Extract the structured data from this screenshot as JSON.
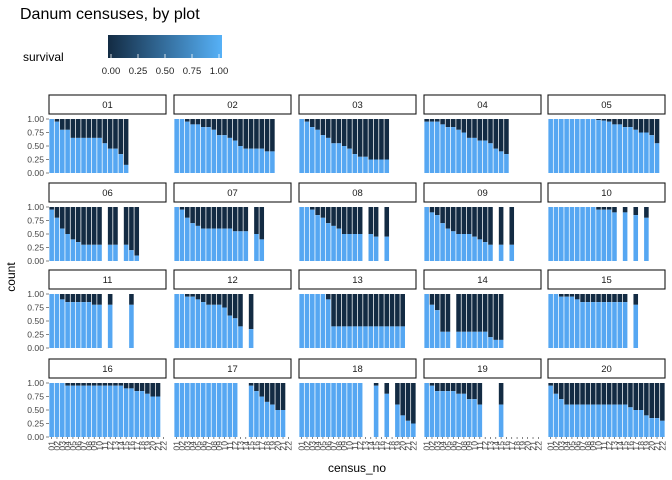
{
  "chart_data": {
    "type": "stacked-bar-facets",
    "title": "Danum censuses, by plot",
    "xlabel": "census_no",
    "ylabel": "count",
    "ylim": [
      0,
      1
    ],
    "yticks": [
      "0.00",
      "0.25",
      "0.50",
      "0.75",
      "1.00"
    ],
    "x_tick_labels": [
      "01",
      "02",
      "03",
      "04",
      "05",
      "06",
      "07",
      "08",
      "09",
      "10",
      "11",
      "12",
      "13",
      "14",
      "15",
      "16",
      "17",
      "18",
      "19",
      "20",
      "21",
      "22"
    ],
    "legend": {
      "title": "survival",
      "ticks": [
        "0.00",
        "0.25",
        "0.50",
        "0.75",
        "1.00"
      ],
      "color_low": "#132B43",
      "color_high": "#56B1F7",
      "placement": "top"
    },
    "colors": {
      "survived": "#56A7F2",
      "died": "#132B43"
    },
    "facets": [
      {
        "label": "01",
        "survival": [
          1,
          0.95,
          0.8,
          0.8,
          0.65,
          0.65,
          0.65,
          0.65,
          0.65,
          0.65,
          0.55,
          0.45,
          0.45,
          0.35,
          0.15,
          null,
          null,
          null,
          null,
          null,
          null,
          null
        ]
      },
      {
        "label": "02",
        "survival": [
          1,
          1,
          0.95,
          0.9,
          0.9,
          0.85,
          0.85,
          0.8,
          0.7,
          0.7,
          0.65,
          0.6,
          0.5,
          0.45,
          0.45,
          0.45,
          0.45,
          0.4,
          0.4,
          null,
          null,
          null
        ]
      },
      {
        "label": "03",
        "survival": [
          1,
          0.95,
          0.85,
          0.8,
          0.7,
          0.65,
          0.55,
          0.55,
          0.5,
          0.45,
          0.35,
          0.3,
          0.3,
          0.25,
          0.25,
          0.25,
          0.25,
          null,
          null,
          null,
          null,
          null
        ]
      },
      {
        "label": "04",
        "survival": [
          0.95,
          0.95,
          0.95,
          0.9,
          0.85,
          0.85,
          0.8,
          0.75,
          0.65,
          0.65,
          0.6,
          0.6,
          0.55,
          0.45,
          0.4,
          0.35,
          null,
          null,
          null,
          null,
          null,
          null
        ]
      },
      {
        "label": "05",
        "survival": [
          1,
          1,
          1,
          1,
          1,
          1,
          1,
          1,
          1,
          0.98,
          0.97,
          0.95,
          0.9,
          0.9,
          0.85,
          0.85,
          0.8,
          0.75,
          0.75,
          0.7,
          0.55,
          null
        ]
      },
      {
        "label": "06",
        "survival": [
          0.95,
          0.8,
          0.6,
          0.5,
          0.4,
          0.35,
          0.3,
          0.3,
          0.3,
          0.3,
          null,
          0.3,
          0.3,
          null,
          0.3,
          0.2,
          0.1,
          null,
          null,
          null,
          null,
          null
        ]
      },
      {
        "label": "07",
        "survival": [
          1,
          0.95,
          0.8,
          0.7,
          0.65,
          0.6,
          0.6,
          0.6,
          0.6,
          0.6,
          0.6,
          0.55,
          0.55,
          0.55,
          null,
          0.5,
          0.4,
          null,
          null,
          null,
          null,
          null
        ]
      },
      {
        "label": "08",
        "survival": [
          1,
          1,
          0.95,
          0.85,
          0.8,
          0.7,
          0.65,
          0.6,
          0.5,
          0.5,
          0.5,
          0.5,
          null,
          0.5,
          0.45,
          null,
          0.45,
          null,
          null,
          null,
          null,
          null
        ]
      },
      {
        "label": "09",
        "survival": [
          1,
          0.9,
          0.85,
          0.7,
          0.6,
          0.55,
          0.5,
          0.5,
          0.5,
          0.45,
          0.4,
          0.35,
          0.3,
          null,
          0.3,
          null,
          0.3,
          null,
          null,
          null,
          null,
          null
        ]
      },
      {
        "label": "10",
        "survival": [
          1,
          1,
          1,
          1,
          1,
          1,
          1,
          1,
          1,
          0.95,
          0.95,
          0.95,
          0.9,
          null,
          0.9,
          null,
          0.85,
          null,
          0.8,
          null,
          null,
          null
        ]
      },
      {
        "label": "11",
        "survival": [
          1,
          1,
          0.9,
          0.85,
          0.85,
          0.85,
          0.85,
          0.85,
          0.8,
          0.8,
          null,
          0.8,
          null,
          null,
          null,
          0.8,
          null,
          null,
          null,
          null,
          null,
          null
        ]
      },
      {
        "label": "12",
        "survival": [
          1,
          1,
          0.95,
          0.95,
          0.9,
          0.85,
          0.8,
          0.8,
          0.8,
          0.75,
          0.6,
          0.55,
          0.4,
          null,
          0.35,
          null,
          null,
          null,
          null,
          null,
          null,
          null
        ]
      },
      {
        "label": "13",
        "survival": [
          1,
          1,
          1,
          1,
          1,
          0.9,
          0.4,
          0.4,
          0.4,
          0.4,
          0.4,
          0.4,
          0.4,
          0.4,
          0.4,
          0.4,
          0.4,
          0.4,
          0.4,
          0.4,
          null,
          null
        ]
      },
      {
        "label": "14",
        "survival": [
          1,
          0.8,
          0.7,
          0.3,
          0.3,
          null,
          0.3,
          0.3,
          0.3,
          0.3,
          0.3,
          0.3,
          0.2,
          0.15,
          0.15,
          null,
          null,
          null,
          null,
          null,
          null,
          null
        ]
      },
      {
        "label": "15",
        "survival": [
          1,
          1,
          0.95,
          0.95,
          0.95,
          0.9,
          0.85,
          0.85,
          0.85,
          0.85,
          0.85,
          0.85,
          0.85,
          0.85,
          0.85,
          null,
          0.8,
          null,
          null,
          null,
          null,
          null
        ]
      },
      {
        "label": "16",
        "survival": [
          1,
          1,
          1,
          0.95,
          0.95,
          0.95,
          0.95,
          0.95,
          0.95,
          0.95,
          0.95,
          0.95,
          0.95,
          0.95,
          0.9,
          0.9,
          0.85,
          0.85,
          0.8,
          0.75,
          0.75,
          null
        ]
      },
      {
        "label": "17",
        "survival": [
          1,
          1,
          1,
          1,
          1,
          1,
          1,
          1,
          1,
          1,
          1,
          1,
          null,
          null,
          0.95,
          0.85,
          0.75,
          0.65,
          0.6,
          0.5,
          0.5,
          null
        ]
      },
      {
        "label": "18",
        "survival": [
          1,
          1,
          1,
          1,
          1,
          1,
          1,
          1,
          1,
          1,
          1,
          1,
          null,
          null,
          0.95,
          null,
          0.8,
          null,
          0.6,
          0.4,
          0.3,
          0.25
        ]
      },
      {
        "label": "19",
        "survival": [
          1,
          0.95,
          0.85,
          0.85,
          0.85,
          0.85,
          0.8,
          0.8,
          0.7,
          0.7,
          0.6,
          null,
          null,
          null,
          0.6,
          null,
          null,
          null,
          null,
          null,
          null,
          null
        ]
      },
      {
        "label": "20",
        "survival": [
          0.95,
          0.8,
          0.7,
          0.6,
          0.6,
          0.6,
          0.6,
          0.6,
          0.6,
          0.6,
          0.6,
          0.6,
          0.6,
          0.6,
          0.6,
          0.55,
          0.5,
          0.5,
          0.4,
          0.35,
          0.35,
          0.3
        ]
      }
    ]
  }
}
